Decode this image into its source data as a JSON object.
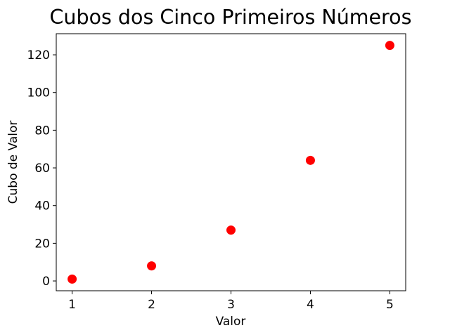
{
  "chart_data": {
    "type": "scatter",
    "title": "Cubos dos Cinco Primeiros Números",
    "xlabel": "Valor",
    "ylabel": "Cubo de Valor",
    "x": [
      1,
      2,
      3,
      4,
      5
    ],
    "y": [
      1,
      8,
      27,
      64,
      125
    ],
    "xlim": [
      0.8,
      5.2
    ],
    "ylim": [
      -5.2,
      131.2
    ],
    "xticks": [
      1,
      2,
      3,
      4,
      5
    ],
    "yticks": [
      0,
      20,
      40,
      60,
      80,
      100,
      120
    ],
    "marker_color": "#ff0000",
    "grid": false
  }
}
